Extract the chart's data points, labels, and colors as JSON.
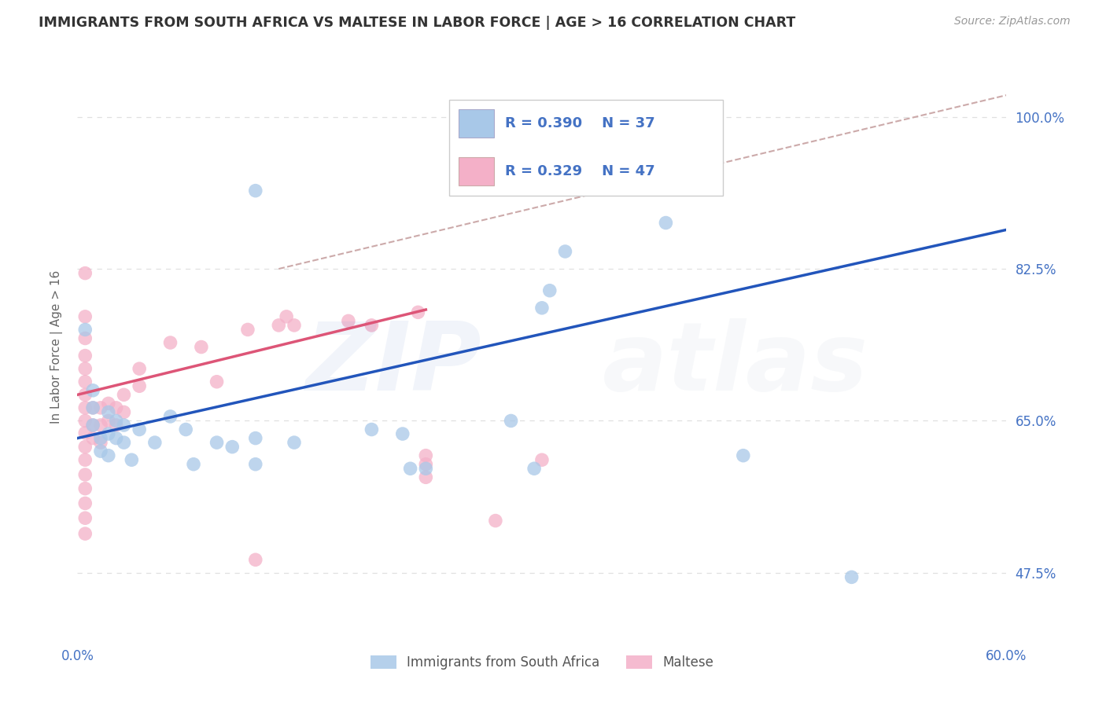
{
  "title": "IMMIGRANTS FROM SOUTH AFRICA VS MALTESE IN LABOR FORCE | AGE > 16 CORRELATION CHART",
  "source": "Source: ZipAtlas.com",
  "ylabel": "In Labor Force | Age > 16",
  "xlim": [
    0.0,
    0.6
  ],
  "ylim": [
    0.4,
    1.07
  ],
  "xtick_positions": [
    0.0,
    0.12,
    0.24,
    0.36,
    0.48,
    0.6
  ],
  "xticklabels": [
    "0.0%",
    "",
    "",
    "",
    "",
    "60.0%"
  ],
  "ytick_positions": [
    0.475,
    0.65,
    0.825,
    1.0
  ],
  "ytick_labels": [
    "47.5%",
    "65.0%",
    "82.5%",
    "100.0%"
  ],
  "R_blue": 0.39,
  "N_blue": 37,
  "R_pink": 0.329,
  "N_pink": 47,
  "scatter_blue": [
    [
      0.005,
      0.755
    ],
    [
      0.01,
      0.685
    ],
    [
      0.01,
      0.665
    ],
    [
      0.01,
      0.645
    ],
    [
      0.015,
      0.63
    ],
    [
      0.015,
      0.615
    ],
    [
      0.02,
      0.66
    ],
    [
      0.02,
      0.635
    ],
    [
      0.02,
      0.61
    ],
    [
      0.025,
      0.65
    ],
    [
      0.025,
      0.63
    ],
    [
      0.03,
      0.645
    ],
    [
      0.03,
      0.625
    ],
    [
      0.035,
      0.605
    ],
    [
      0.04,
      0.64
    ],
    [
      0.05,
      0.625
    ],
    [
      0.06,
      0.655
    ],
    [
      0.07,
      0.64
    ],
    [
      0.075,
      0.6
    ],
    [
      0.09,
      0.625
    ],
    [
      0.1,
      0.62
    ],
    [
      0.115,
      0.6
    ],
    [
      0.115,
      0.63
    ],
    [
      0.14,
      0.625
    ],
    [
      0.19,
      0.64
    ],
    [
      0.21,
      0.635
    ],
    [
      0.215,
      0.595
    ],
    [
      0.225,
      0.595
    ],
    [
      0.28,
      0.65
    ],
    [
      0.295,
      0.595
    ],
    [
      0.3,
      0.78
    ],
    [
      0.305,
      0.8
    ],
    [
      0.315,
      0.845
    ],
    [
      0.38,
      0.878
    ],
    [
      0.43,
      0.61
    ],
    [
      0.5,
      0.47
    ],
    [
      0.115,
      0.915
    ]
  ],
  "scatter_pink": [
    [
      0.005,
      0.82
    ],
    [
      0.005,
      0.77
    ],
    [
      0.005,
      0.745
    ],
    [
      0.005,
      0.725
    ],
    [
      0.005,
      0.71
    ],
    [
      0.005,
      0.695
    ],
    [
      0.005,
      0.68
    ],
    [
      0.005,
      0.665
    ],
    [
      0.005,
      0.65
    ],
    [
      0.005,
      0.636
    ],
    [
      0.005,
      0.62
    ],
    [
      0.005,
      0.605
    ],
    [
      0.005,
      0.588
    ],
    [
      0.005,
      0.572
    ],
    [
      0.005,
      0.555
    ],
    [
      0.005,
      0.538
    ],
    [
      0.005,
      0.52
    ],
    [
      0.01,
      0.665
    ],
    [
      0.01,
      0.645
    ],
    [
      0.01,
      0.63
    ],
    [
      0.015,
      0.665
    ],
    [
      0.015,
      0.645
    ],
    [
      0.015,
      0.625
    ],
    [
      0.02,
      0.67
    ],
    [
      0.02,
      0.65
    ],
    [
      0.025,
      0.665
    ],
    [
      0.025,
      0.645
    ],
    [
      0.03,
      0.68
    ],
    [
      0.03,
      0.66
    ],
    [
      0.04,
      0.71
    ],
    [
      0.04,
      0.69
    ],
    [
      0.06,
      0.74
    ],
    [
      0.08,
      0.735
    ],
    [
      0.09,
      0.695
    ],
    [
      0.11,
      0.755
    ],
    [
      0.13,
      0.76
    ],
    [
      0.135,
      0.77
    ],
    [
      0.14,
      0.76
    ],
    [
      0.175,
      0.765
    ],
    [
      0.19,
      0.76
    ],
    [
      0.22,
      0.775
    ],
    [
      0.225,
      0.61
    ],
    [
      0.225,
      0.6
    ],
    [
      0.225,
      0.585
    ],
    [
      0.27,
      0.535
    ],
    [
      0.3,
      0.605
    ],
    [
      0.115,
      0.49
    ]
  ],
  "blue_line_x": [
    0.0,
    0.6
  ],
  "blue_line_y": [
    0.63,
    0.87
  ],
  "pink_line_x": [
    0.0,
    0.225
  ],
  "pink_line_y": [
    0.68,
    0.778
  ],
  "dash_line_x": [
    0.13,
    0.6
  ],
  "dash_line_y": [
    0.825,
    1.025
  ],
  "blue_color": "#a8c8e8",
  "pink_color": "#f4b0c8",
  "blue_line_color": "#2255bb",
  "pink_line_color": "#dd5577",
  "dash_line_color": "#ccaaaa",
  "title_color": "#333333",
  "axis_color": "#4472c4",
  "grid_color": "#e0e0e0",
  "background_color": "#ffffff",
  "zip_color": "#6688cc",
  "atlas_color": "#aabbcc"
}
